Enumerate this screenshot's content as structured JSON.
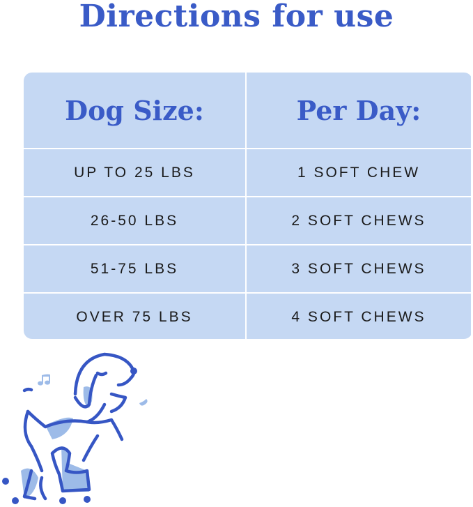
{
  "title": "Directions for use",
  "table": {
    "headers": [
      "Dog Size:",
      "Per Day:"
    ],
    "rows": [
      [
        "UP TO 25 LBS",
        "1  SOFT CHEW"
      ],
      [
        "26-50 LBS",
        "2 SOFT CHEWS"
      ],
      [
        "51-75 LBS",
        "3 SOFT CHEWS"
      ],
      [
        "OVER 75 LBS",
        "4 SOFT CHEWS"
      ]
    ]
  },
  "colors": {
    "accent": "#3a5bc7",
    "table_bg": "#c5d8f3",
    "light_accent": "#9dbbe8"
  },
  "illustration": "dancing-dog-icon"
}
